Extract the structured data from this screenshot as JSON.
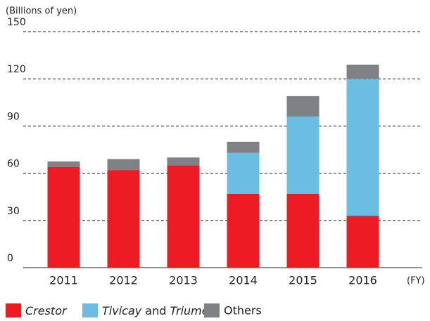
{
  "chart_data": {
    "type": "stacked_bar",
    "y_axis_label": "(Billions of yen)",
    "x_axis_label": "(FY)",
    "categories": [
      "2011",
      "2012",
      "2013",
      "2014",
      "2015",
      "2016"
    ],
    "series": [
      {
        "name": "Crestor",
        "color": "#ed1c24",
        "italic": true,
        "values": [
          64,
          62,
          65,
          47,
          47,
          33
        ]
      },
      {
        "name": "Tivicay and Triumeq",
        "color": "#6bbde3",
        "italic": true,
        "values": [
          0,
          0,
          0,
          26,
          49,
          87
        ]
      },
      {
        "name": "Others",
        "color": "#808184",
        "italic": false,
        "values": [
          3.5,
          7,
          5,
          7,
          13,
          9
        ]
      }
    ],
    "ylim": [
      0,
      150
    ],
    "yticks": [
      0,
      30,
      60,
      90,
      120,
      150
    ],
    "grid": true
  }
}
